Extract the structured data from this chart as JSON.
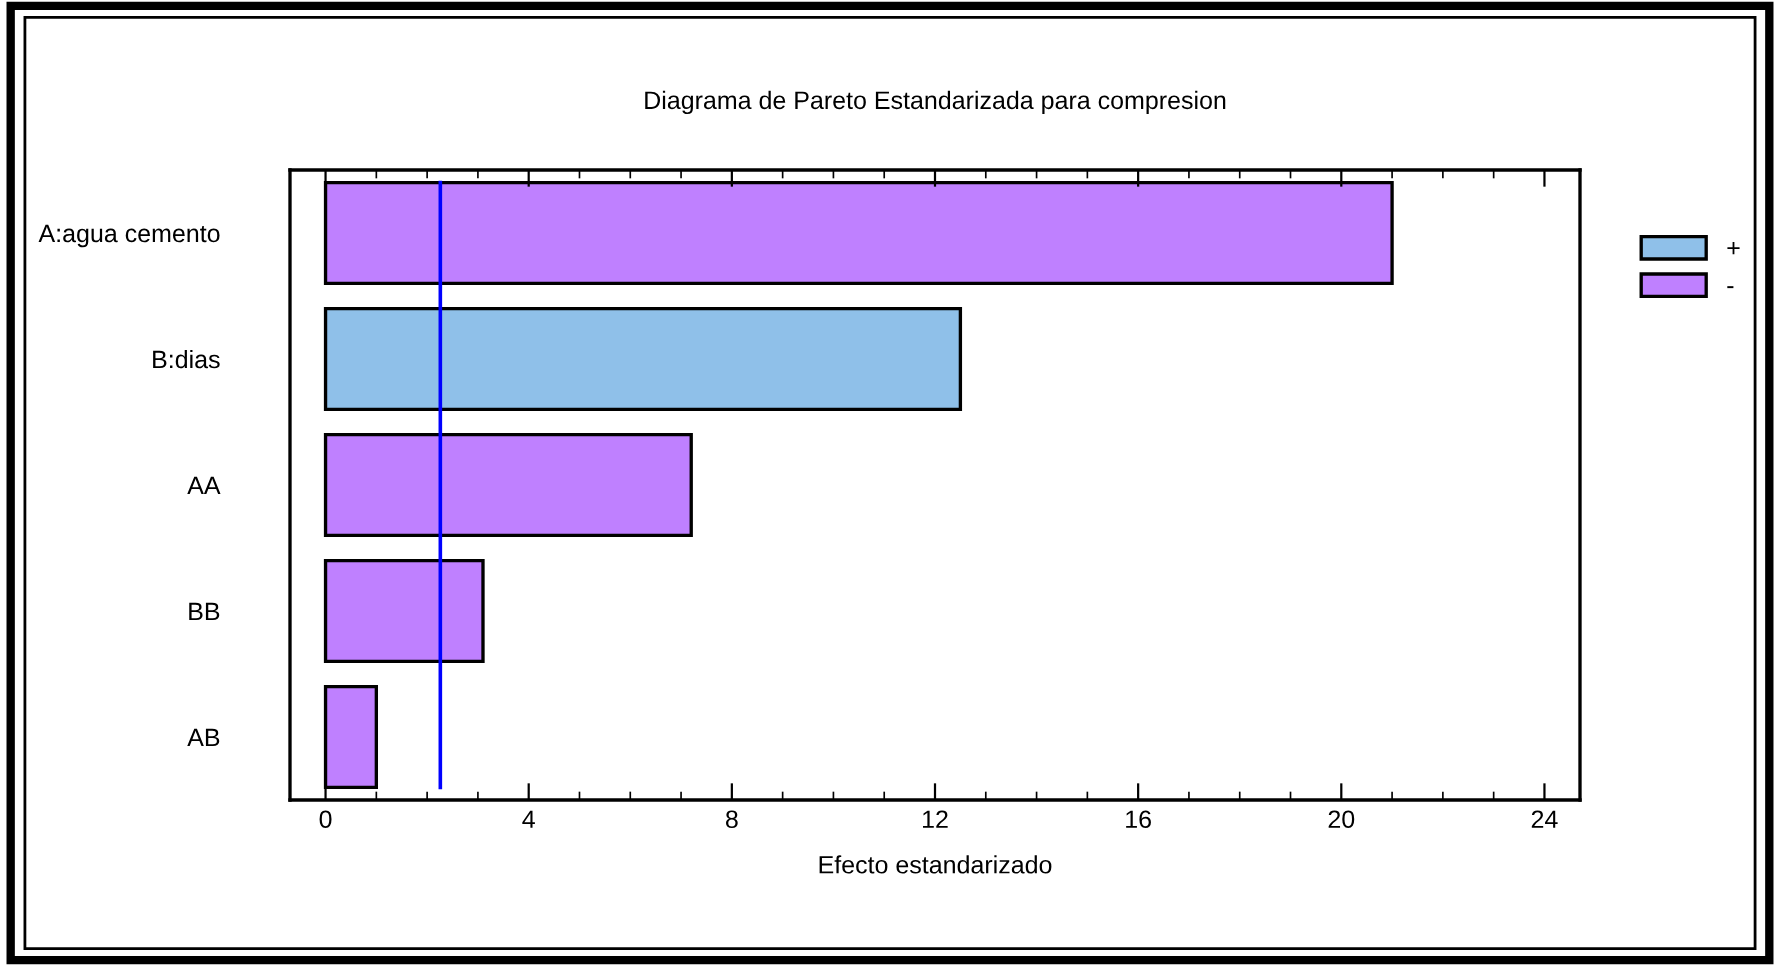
{
  "chart_data": {
    "type": "bar",
    "orientation": "horizontal",
    "title": "Diagrama de Pareto Estandarizada para compresion",
    "xlabel": "Efecto estandarizado",
    "categories": [
      "A:agua cemento",
      "B:dias",
      "AA",
      "BB",
      "AB"
    ],
    "series": [
      {
        "name": "+",
        "color": "#8fc0e9",
        "values": [
          null,
          12.5,
          null,
          null,
          null
        ]
      },
      {
        "name": "-",
        "color": "#bf80ff",
        "values": [
          21.0,
          null,
          7.2,
          3.1,
          1.0
        ]
      }
    ],
    "xlim": [
      -0.7,
      24.7
    ],
    "xticks": [
      0,
      4,
      8,
      12,
      16,
      20,
      24
    ],
    "ref_lines": [
      {
        "axis": "x",
        "value": 2.26,
        "color": "#0000ff"
      }
    ],
    "legend": "right",
    "grid": false
  }
}
